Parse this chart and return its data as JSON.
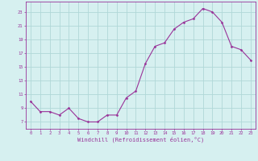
{
  "x": [
    0,
    1,
    2,
    3,
    4,
    5,
    6,
    7,
    8,
    9,
    10,
    11,
    12,
    13,
    14,
    15,
    16,
    17,
    18,
    19,
    20,
    21,
    22,
    23
  ],
  "y": [
    10.0,
    8.5,
    8.5,
    8.0,
    9.0,
    7.5,
    7.0,
    7.0,
    8.0,
    8.0,
    10.5,
    11.5,
    15.5,
    18.0,
    18.5,
    20.5,
    21.5,
    22.0,
    23.5,
    23.0,
    21.5,
    18.0,
    17.5,
    16.0
  ],
  "line_color": "#993399",
  "marker": "D",
  "marker_size": 1.5,
  "bg_color": "#d6f0f0",
  "grid_color": "#b0d8d8",
  "tick_color": "#993399",
  "xlabel": "Windchill (Refroidissement éolien,°C)",
  "ylabel_ticks": [
    7,
    9,
    11,
    13,
    15,
    17,
    19,
    21,
    23
  ],
  "ylim": [
    6.0,
    24.5
  ],
  "xlim": [
    -0.5,
    23.5
  ],
  "title": ""
}
